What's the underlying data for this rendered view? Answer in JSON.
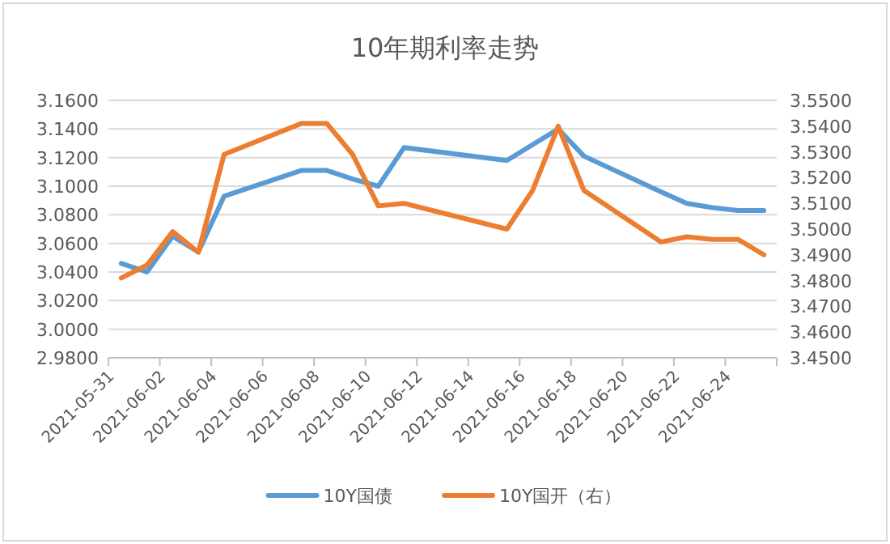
{
  "chart_data": {
    "type": "line",
    "title": "10年期利率走势",
    "x": [
      "2021-05-31T12:00",
      "2021-06-01T12:00",
      "2021-06-02T12:00",
      "2021-06-03T12:00",
      "2021-06-04T12:00",
      "2021-06-07T12:00",
      "2021-06-08T12:00",
      "2021-06-09T12:00",
      "2021-06-10T12:00",
      "2021-06-11T12:00",
      "2021-06-15T12:00",
      "2021-06-16T12:00",
      "2021-06-17T12:00",
      "2021-06-18T12:00",
      "2021-06-21T12:00",
      "2021-06-22T12:00",
      "2021-06-23T12:00",
      "2021-06-24T12:00",
      "2021-06-25T12:00"
    ],
    "series": [
      {
        "name": "10Y国债",
        "color": "#5b9bd5",
        "values": [
          3.046,
          3.04,
          3.065,
          3.054,
          3.093,
          3.111,
          3.111,
          3.105,
          3.1,
          3.127,
          3.118,
          3.129,
          3.14,
          3.121,
          3.096,
          3.088,
          3.085,
          3.083,
          3.083
        ]
      },
      {
        "name": "10Y国开（右）",
        "color": "#ed7d31",
        "axis": "y2",
        "values": [
          3.481,
          3.486,
          3.499,
          3.491,
          3.529,
          3.541,
          3.541,
          3.529,
          3.509,
          3.51,
          3.5,
          3.515,
          3.54,
          3.515,
          3.495,
          3.497,
          3.496,
          3.496,
          3.49
        ]
      }
    ],
    "xlim": [
      "2021-05-31",
      "2021-06-26"
    ],
    "xticks": [
      "2021-05-31",
      "2021-06-02",
      "2021-06-04",
      "2021-06-06",
      "2021-06-08",
      "2021-06-10",
      "2021-06-12",
      "2021-06-14",
      "2021-06-16",
      "2021-06-18",
      "2021-06-20",
      "2021-06-22",
      "2021-06-24",
      {
        "value": "2021-06-26",
        "label": null
      }
    ],
    "ylim": [
      2.98,
      3.16
    ],
    "yticks": [
      {
        "value": 2.98,
        "label": "2.9800"
      },
      {
        "value": 3.0,
        "label": "3.0000"
      },
      {
        "value": 3.02,
        "label": "3.0200"
      },
      {
        "value": 3.04,
        "label": "3.0400"
      },
      {
        "value": 3.06,
        "label": "3.0600"
      },
      {
        "value": 3.08,
        "label": "3.0800"
      },
      {
        "value": 3.1,
        "label": "3.1000"
      },
      {
        "value": 3.12,
        "label": "3.1200"
      },
      {
        "value": 3.14,
        "label": "3.1400"
      },
      {
        "value": 3.16,
        "label": "3.1600"
      }
    ],
    "y2lim": [
      3.45,
      3.55
    ],
    "y2ticks": [
      {
        "value": 3.45,
        "label": "3.4500"
      },
      {
        "value": 3.46,
        "label": "3.4600"
      },
      {
        "value": 3.47,
        "label": "3.4700"
      },
      {
        "value": 3.48,
        "label": "3.4800"
      },
      {
        "value": 3.49,
        "label": "3.4900"
      },
      {
        "value": 3.5,
        "label": "3.5000"
      },
      {
        "value": 3.51,
        "label": "3.5100"
      },
      {
        "value": 3.52,
        "label": "3.5200"
      },
      {
        "value": 3.53,
        "label": "3.5300"
      },
      {
        "value": 3.54,
        "label": "3.5400"
      },
      {
        "value": 3.55,
        "label": "3.5500"
      }
    ],
    "grid": "y",
    "legend": "bottom",
    "marker": "none",
    "line_style": "solid"
  }
}
